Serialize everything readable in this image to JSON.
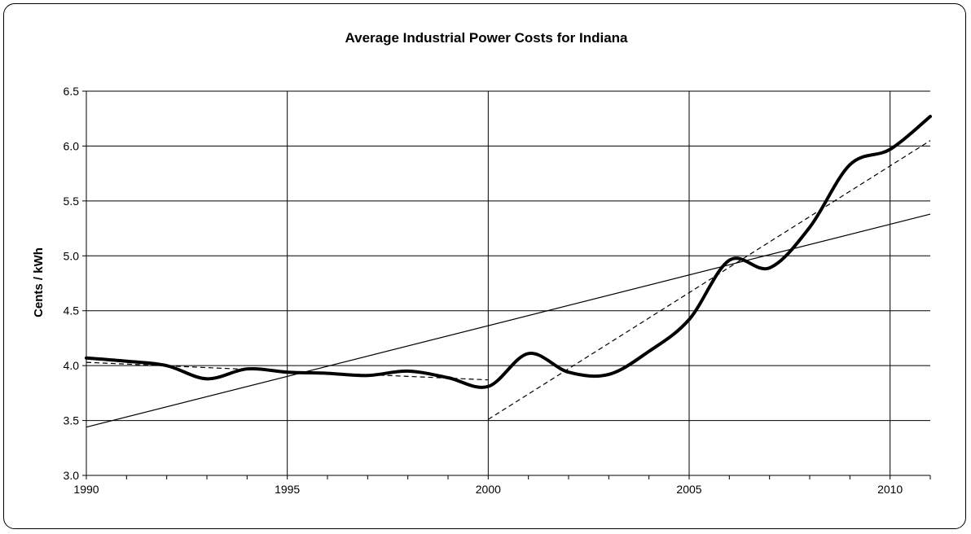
{
  "chart_data": {
    "type": "line",
    "title": "Average Industrial Power Costs for Indiana",
    "xlabel": "",
    "ylabel": "Cents / kWh",
    "xlim": [
      1990,
      2011
    ],
    "ylim": [
      3.0,
      6.5
    ],
    "x_ticks": [
      "1990",
      "1995",
      "2000",
      "2005",
      "2010"
    ],
    "y_ticks": [
      "3.0",
      "3.5",
      "4.0",
      "4.5",
      "5.0",
      "5.5",
      "6.0",
      "6.5"
    ],
    "grid": true,
    "legend": "none",
    "series": [
      {
        "style": "thick-solid",
        "x": [
          1990,
          1991,
          1992,
          1993,
          1994,
          1995,
          1996,
          1997,
          1998,
          1999,
          2000,
          2001,
          2002,
          2003,
          2004,
          2005,
          2006,
          2007,
          2008,
          2009,
          2010,
          2011
        ],
        "y": [
          4.07,
          4.04,
          4.0,
          3.88,
          3.97,
          3.94,
          3.93,
          3.91,
          3.95,
          3.89,
          3.81,
          4.11,
          3.94,
          3.92,
          4.13,
          4.42,
          4.96,
          4.89,
          5.26,
          5.83,
          5.97,
          6.27
        ]
      },
      {
        "style": "thin-solid-trend",
        "x": [
          1990,
          2011
        ],
        "y": [
          3.44,
          5.38
        ]
      },
      {
        "style": "dashed-trend",
        "x": [
          1990,
          2000
        ],
        "y": [
          4.03,
          3.87
        ]
      },
      {
        "style": "dashed-trend",
        "x": [
          2000,
          2011
        ],
        "y": [
          3.51,
          6.05
        ]
      }
    ],
    "colors": {
      "line": "#000000",
      "grid": "#000000"
    }
  }
}
